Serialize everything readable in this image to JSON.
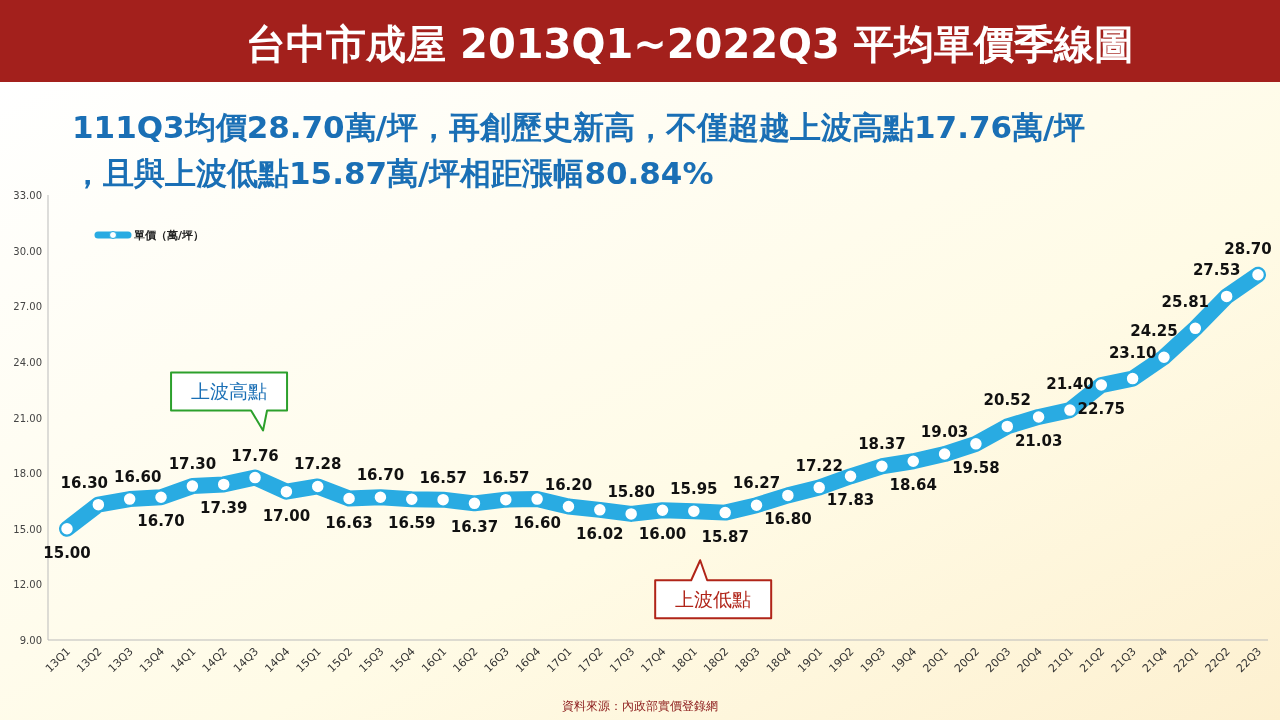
{
  "chart_data": {
    "type": "line",
    "title": "台中市成屋 2013Q1~2022Q3 平均單價季線圖",
    "subtitle": "111Q3均價28.70萬/坪，再創歷史新高，不僅超越上波高點17.76萬/坪，且與上波低點15.87萬/坪相距漲幅80.84%",
    "categories": [
      "13Q1",
      "13Q2",
      "13Q3",
      "13Q4",
      "14Q1",
      "14Q2",
      "14Q3",
      "14Q4",
      "15Q1",
      "15Q2",
      "15Q3",
      "15Q4",
      "16Q1",
      "16Q2",
      "16Q3",
      "16Q4",
      "17Q1",
      "17Q2",
      "17Q3",
      "17Q4",
      "18Q1",
      "18Q2",
      "18Q3",
      "18Q4",
      "19Q1",
      "19Q2",
      "19Q3",
      "19Q4",
      "20Q1",
      "20Q2",
      "20Q3",
      "20Q4",
      "21Q1",
      "21Q2",
      "21Q3",
      "21Q4",
      "22Q1",
      "22Q2",
      "22Q3"
    ],
    "series": [
      {
        "name": "單價（萬/坪）",
        "color": "#29abe2",
        "values": [
          15.0,
          16.3,
          16.6,
          16.7,
          17.3,
          17.39,
          17.76,
          17.0,
          17.28,
          16.63,
          16.7,
          16.59,
          16.57,
          16.37,
          16.57,
          16.6,
          16.2,
          16.02,
          15.8,
          16.0,
          15.95,
          15.87,
          16.27,
          16.8,
          17.22,
          17.83,
          18.37,
          18.64,
          19.03,
          19.58,
          20.52,
          21.03,
          21.4,
          22.75,
          23.1,
          24.25,
          25.81,
          27.53,
          28.7
        ]
      }
    ],
    "value_labels": [
      "15.00",
      "16.30",
      "16.60",
      "16.70",
      "17.30",
      "17.39",
      "17.76",
      "17.00",
      "17.28",
      "16.63",
      "16.70",
      "16.59",
      "16.57",
      "16.37",
      "16.57",
      "16.60",
      "16.20",
      "16.02",
      "15.80",
      "16.00",
      "15.95",
      "15.87",
      "16.27",
      "16.80",
      "17.22",
      "17.83",
      "18.37",
      "18.64",
      "19.03",
      "19.58",
      "20.52",
      "21.03",
      "21.40",
      "22.75",
      "23.10",
      "24.25",
      "25.81",
      "27.53",
      "28.70"
    ],
    "ylim": [
      9,
      33
    ],
    "yticks": [
      {
        "value": 9,
        "label": "9.00"
      },
      {
        "value": 12,
        "label": "12.00"
      },
      {
        "value": 15,
        "label": "15.00"
      },
      {
        "value": 18,
        "label": "18.00"
      },
      {
        "value": 21,
        "label": "21.00"
      },
      {
        "value": 24,
        "label": "24.00"
      },
      {
        "value": 27,
        "label": "27.00"
      },
      {
        "value": 30,
        "label": "30.00"
      },
      {
        "value": 33,
        "label": "33.00"
      }
    ],
    "grid": false,
    "legend": "top left",
    "marker": "circle",
    "line_style": "solid",
    "annotations": [
      "上波高點",
      "上波低點",
      "資料來源：內政部實價登錄網"
    ]
  }
}
